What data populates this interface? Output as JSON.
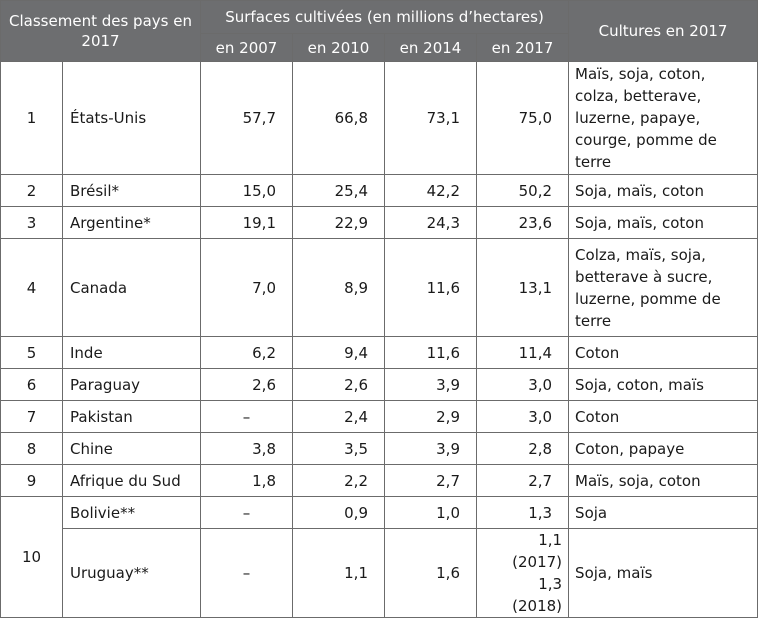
{
  "header": {
    "rank_col": "Classement des pays en 2017",
    "surfaces_group": "Surfaces cultivées (en millions d’hectares)",
    "years": [
      "en 2007",
      "en 2010",
      "en 2014",
      "en 2017"
    ],
    "crops_col": "Cultures en 2017"
  },
  "rows": [
    {
      "rank": "1",
      "country": "États-Unis",
      "v2007": "57,7",
      "v2010": "66,8",
      "v2014": "73,1",
      "v2017": "75,0",
      "crops": "Maïs, soja, coton, colza, betterave, luzerne, papaye, courge, pomme de terre"
    },
    {
      "rank": "2",
      "country": "Brésil*",
      "v2007": "15,0",
      "v2010": "25,4",
      "v2014": "42,2",
      "v2017": "50,2",
      "crops": "Soja, maïs, coton"
    },
    {
      "rank": "3",
      "country": "Argentine*",
      "v2007": "19,1",
      "v2010": "22,9",
      "v2014": "24,3",
      "v2017": "23,6",
      "crops": "Soja, maïs, coton"
    },
    {
      "rank": "4",
      "country": "Canada",
      "v2007": "7,0",
      "v2010": "8,9",
      "v2014": "11,6",
      "v2017": "13,1",
      "crops": "Colza, maïs, soja, betterave à sucre, luzerne, pomme de terre"
    },
    {
      "rank": "5",
      "country": "Inde",
      "v2007": "6,2",
      "v2010": "9,4",
      "v2014": "11,6",
      "v2017": "11,4",
      "crops": "Coton"
    },
    {
      "rank": "6",
      "country": "Paraguay",
      "v2007": "2,6",
      "v2010": "2,6",
      "v2014": "3,9",
      "v2017": "3,0",
      "crops": "Soja, coton, maïs"
    },
    {
      "rank": "7",
      "country": "Pakistan",
      "v2007": "–",
      "v2010": "2,4",
      "v2014": "2,9",
      "v2017": "3,0",
      "crops": "Coton"
    },
    {
      "rank": "8",
      "country": "Chine",
      "v2007": "3,8",
      "v2010": "3,5",
      "v2014": "3,9",
      "v2017": "2,8",
      "crops": "Coton, papaye"
    },
    {
      "rank": "9",
      "country": "Afrique du Sud",
      "v2007": "1,8",
      "v2010": "2,2",
      "v2014": "2,7",
      "v2017": "2,7",
      "crops": "Maïs, soja, coton"
    },
    {
      "rank": "10",
      "country": "Bolivie**",
      "v2007": "–",
      "v2010": "0,9",
      "v2014": "1,0",
      "v2017": "1,3",
      "crops": "Soja"
    },
    {
      "rank": "10",
      "country": "Uruguay**",
      "v2007": "–",
      "v2010": "1,1",
      "v2014": "1,6",
      "v2017_line1": "1,1 (2017)",
      "v2017_line2": "1,3 (2018)",
      "crops": "Soja, maïs"
    }
  ]
}
